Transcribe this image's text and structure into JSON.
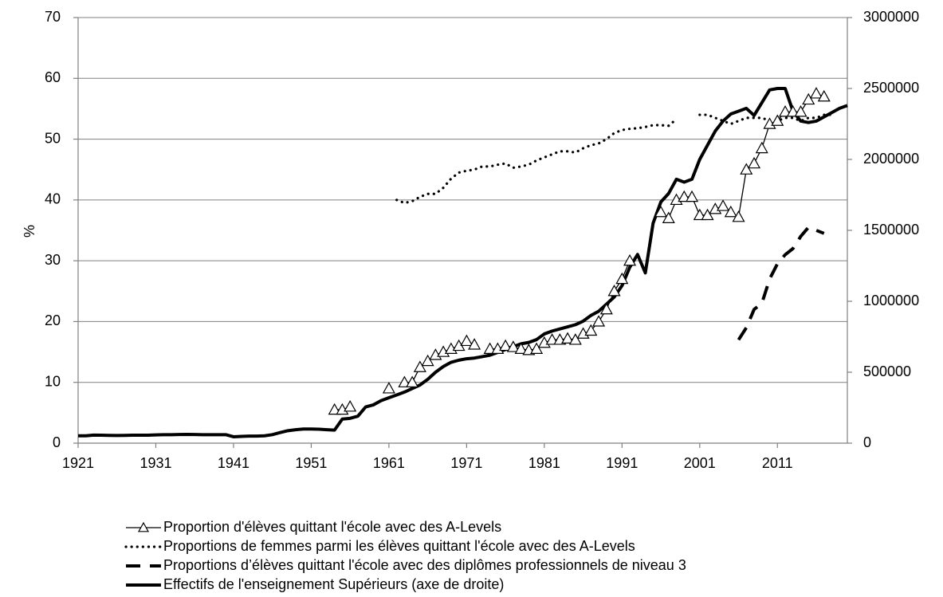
{
  "chart_data": {
    "type": "line",
    "y_label": "%",
    "x": [
      1921,
      1922,
      1923,
      1924,
      1925,
      1926,
      1927,
      1928,
      1929,
      1930,
      1931,
      1932,
      1933,
      1934,
      1935,
      1936,
      1937,
      1938,
      1939,
      1940,
      1941,
      1942,
      1943,
      1944,
      1945,
      1946,
      1947,
      1948,
      1949,
      1950,
      1951,
      1952,
      1953,
      1954,
      1955,
      1956,
      1957,
      1958,
      1959,
      1960,
      1961,
      1962,
      1963,
      1964,
      1965,
      1966,
      1967,
      1968,
      1969,
      1970,
      1971,
      1972,
      1973,
      1974,
      1975,
      1976,
      1977,
      1978,
      1979,
      1980,
      1981,
      1982,
      1983,
      1984,
      1985,
      1986,
      1987,
      1988,
      1989,
      1990,
      1991,
      1992,
      1993,
      1994,
      1995,
      1996,
      1997,
      1998,
      1999,
      2000,
      2001,
      2002,
      2003,
      2004,
      2005,
      2006,
      2007,
      2008,
      2009,
      2010,
      2011,
      2012,
      2013,
      2014,
      2015,
      2016,
      2017,
      2018,
      2019,
      2020
    ],
    "xlim": [
      1921,
      2020
    ],
    "xticks": [
      1921,
      1931,
      1941,
      1951,
      1961,
      1971,
      1981,
      1991,
      2001,
      2011
    ],
    "ylim": [
      0,
      70
    ],
    "yticks": [
      0,
      10,
      20,
      30,
      40,
      50,
      60,
      70
    ],
    "y2lim": [
      0,
      3000000
    ],
    "y2ticks": [
      0,
      500000,
      1000000,
      1500000,
      2000000,
      2500000,
      3000000
    ],
    "grid": true,
    "legend": "bottom",
    "series": [
      {
        "name": "Proportion d'élèves quittant l'école avec des A-Levels",
        "color": "#000000",
        "style": "marker",
        "values": [
          null,
          null,
          null,
          null,
          null,
          null,
          null,
          null,
          null,
          null,
          null,
          null,
          null,
          null,
          null,
          null,
          null,
          null,
          null,
          null,
          null,
          null,
          null,
          null,
          null,
          null,
          null,
          null,
          null,
          null,
          null,
          null,
          null,
          5.5,
          5.5,
          6,
          null,
          null,
          null,
          null,
          9,
          null,
          10,
          10,
          12.5,
          13.5,
          14.5,
          15,
          15.5,
          16,
          16.8,
          16.2,
          null,
          15.5,
          15.5,
          16,
          15.8,
          15.5,
          15.3,
          15.5,
          16.5,
          17,
          17,
          17.2,
          17,
          18,
          18.5,
          20,
          22,
          25,
          27,
          30,
          null,
          null,
          null,
          38,
          37,
          40,
          40.5,
          40.5,
          37.5,
          37.5,
          38.5,
          39,
          38,
          37.2,
          45,
          46,
          48.5,
          52.5,
          53,
          54.5,
          54.5,
          54.5,
          56.5,
          57.5,
          57,
          null,
          null,
          null
        ]
      },
      {
        "name": "Proportions de femmes parmi les élèves quittant l'école avec des A-Levels",
        "color": "#000000",
        "style": "dotted",
        "values": [
          null,
          null,
          null,
          null,
          null,
          null,
          null,
          null,
          null,
          null,
          null,
          null,
          null,
          null,
          null,
          null,
          null,
          null,
          null,
          null,
          null,
          null,
          null,
          null,
          null,
          null,
          null,
          null,
          null,
          null,
          null,
          null,
          null,
          null,
          null,
          null,
          null,
          null,
          null,
          null,
          null,
          40,
          39.5,
          39.8,
          40.5,
          41,
          41,
          42,
          43.5,
          44.5,
          44.8,
          45,
          45.5,
          45.5,
          45.8,
          46,
          45.3,
          45.5,
          45.8,
          46.5,
          47,
          47.5,
          48,
          48,
          47.8,
          48.5,
          49,
          49.3,
          50,
          51,
          51.5,
          51.7,
          51.8,
          52,
          52.3,
          52.3,
          52.2,
          53.3,
          null,
          null,
          54,
          54,
          53.5,
          53,
          52.5,
          53,
          53.5,
          53.5,
          53.5,
          53,
          53,
          53.5,
          53.5,
          53,
          53.5,
          53.5,
          54,
          54,
          null,
          null
        ]
      },
      {
        "name": "Proportions d’élèves quittant l'école avec des diplômes professionnels de niveau 3",
        "color": "#000000",
        "style": "dashed",
        "values": [
          null,
          null,
          null,
          null,
          null,
          null,
          null,
          null,
          null,
          null,
          null,
          null,
          null,
          null,
          null,
          null,
          null,
          null,
          null,
          null,
          null,
          null,
          null,
          null,
          null,
          null,
          null,
          null,
          null,
          null,
          null,
          null,
          null,
          null,
          null,
          null,
          null,
          null,
          null,
          null,
          null,
          null,
          null,
          null,
          null,
          null,
          null,
          null,
          null,
          null,
          null,
          null,
          null,
          null,
          null,
          null,
          null,
          null,
          null,
          null,
          null,
          null,
          null,
          null,
          null,
          null,
          null,
          null,
          null,
          null,
          null,
          null,
          null,
          null,
          null,
          null,
          null,
          null,
          null,
          null,
          null,
          null,
          null,
          null,
          null,
          17,
          19,
          22,
          23,
          27,
          29.5,
          31,
          32,
          34,
          35.5,
          35,
          34.5,
          null,
          null,
          null
        ]
      },
      {
        "name": "Effectifs de l'enseignement Supérieurs (axe de droite)",
        "color": "#000000",
        "style": "thick",
        "axis": "y2",
        "values": [
          52000,
          52000,
          57000,
          56000,
          55000,
          54000,
          55000,
          56000,
          56000,
          56000,
          58000,
          60000,
          60000,
          61000,
          62000,
          61000,
          60000,
          60000,
          60000,
          60000,
          45000,
          48000,
          50000,
          50000,
          52000,
          60000,
          75000,
          88000,
          95000,
          100000,
          100000,
          98000,
          95000,
          92000,
          170000,
          175000,
          190000,
          255000,
          270000,
          300000,
          320000,
          340000,
          360000,
          385000,
          410000,
          450000,
          500000,
          540000,
          570000,
          585000,
          595000,
          600000,
          610000,
          620000,
          640000,
          660000,
          680000,
          700000,
          710000,
          730000,
          770000,
          790000,
          805000,
          820000,
          835000,
          860000,
          900000,
          930000,
          980000,
          1030000,
          1110000,
          1240000,
          1330000,
          1200000,
          1550000,
          1700000,
          1760000,
          1860000,
          1840000,
          1860000,
          2000000,
          2100000,
          2200000,
          2270000,
          2320000,
          2340000,
          2360000,
          2310000,
          2400000,
          2490000,
          2500000,
          2500000,
          2340000,
          2270000,
          2260000,
          2270000,
          2300000,
          2330000,
          2360000,
          2380000
        ]
      }
    ]
  }
}
